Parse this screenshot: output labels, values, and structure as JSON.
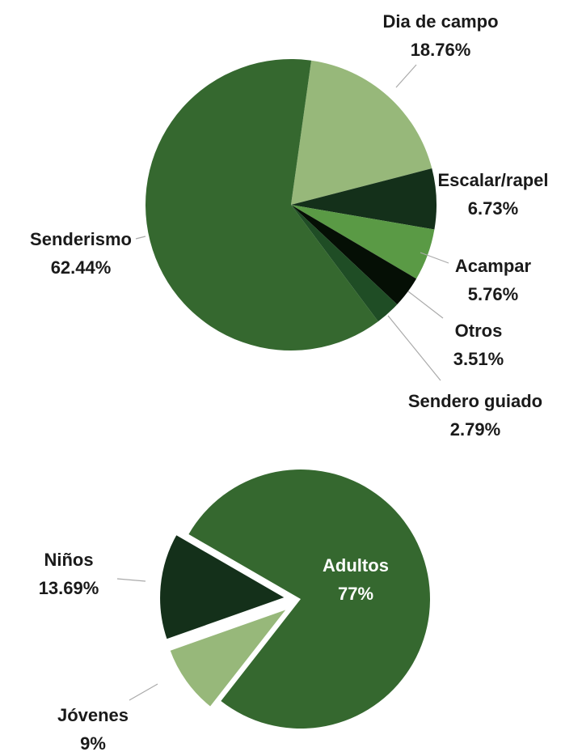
{
  "chart_data": [
    {
      "type": "pie",
      "categories": [
        "Dia de campo",
        "Escalar/rapel",
        "Acampar",
        "Otros",
        "Sendero guiado",
        "Senderismo"
      ],
      "values": [
        18.76,
        6.73,
        5.76,
        3.51,
        2.79,
        62.44
      ],
      "value_labels": [
        "18.76%",
        "6.73%",
        "5.76%",
        "3.51%",
        "2.79%",
        "62.44%"
      ],
      "colors": [
        "#97b87a",
        "#14301a",
        "#5a9a45",
        "#050f05",
        "#1f4d25",
        "#35682f"
      ]
    },
    {
      "type": "pie",
      "categories": [
        "Adultos",
        "Jóvenes",
        "Niños"
      ],
      "values": [
        77,
        9,
        13.69
      ],
      "value_labels": [
        "77%",
        "9%",
        "13.69%"
      ],
      "colors": [
        "#35682f",
        "#97b87a",
        "#14301a"
      ]
    }
  ]
}
